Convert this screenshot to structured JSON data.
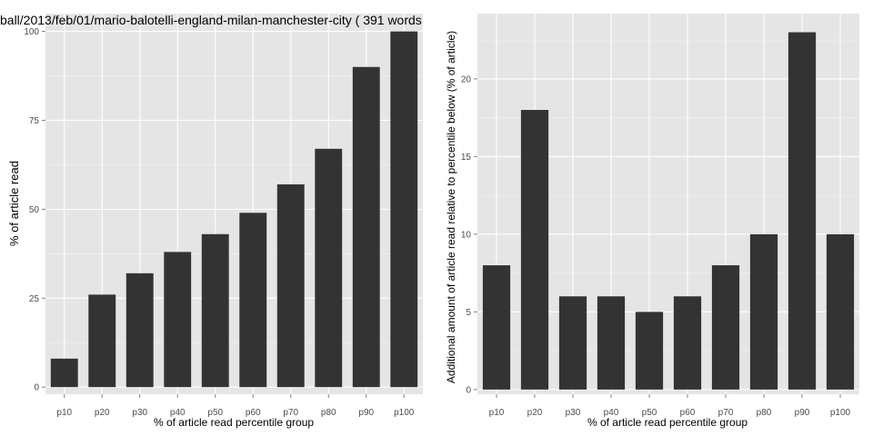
{
  "title": "ball/2013/feb/01/mario-balotelli-england-milan-manchester-city ( 391 words",
  "colors": {
    "panel_bg": "#e5e5e5",
    "grid_major": "#ffffff",
    "grid_minor": "#f2f2f2",
    "bar": "#333333",
    "tick_text": "#4d4d4d",
    "axis_title": "#000000"
  },
  "chart_data": [
    {
      "type": "bar",
      "categories": [
        "p10",
        "p20",
        "p30",
        "p40",
        "p50",
        "p60",
        "p70",
        "p80",
        "p90",
        "p100"
      ],
      "values": [
        8,
        26,
        32,
        38,
        43,
        49,
        57,
        67,
        90,
        100
      ],
      "xlabel": "% of article read percentile group",
      "ylabel": "% of article read",
      "ylim": [
        -2,
        105
      ],
      "yticks": [
        0,
        25,
        50,
        75,
        100
      ],
      "grid": true
    },
    {
      "type": "bar",
      "categories": [
        "p10",
        "p20",
        "p30",
        "p40",
        "p50",
        "p60",
        "p70",
        "p80",
        "p90",
        "p100"
      ],
      "values": [
        8,
        18,
        6,
        6,
        5,
        6,
        8,
        10,
        23,
        10
      ],
      "xlabel": "% of article read percentile group",
      "ylabel": "Additional amount of article read relative to percentile below (% of article)",
      "ylim": [
        -0.3,
        24.2
      ],
      "yticks": [
        0,
        5,
        10,
        15,
        20
      ],
      "grid": true
    }
  ]
}
